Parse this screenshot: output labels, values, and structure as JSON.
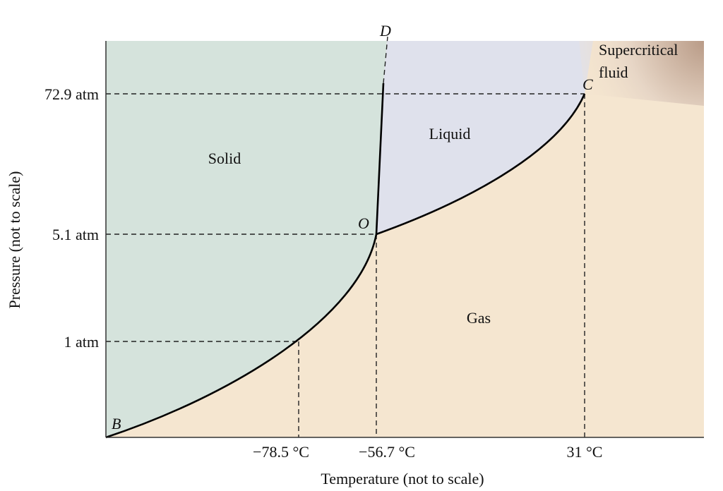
{
  "axes": {
    "x_title": "Temperature (not to scale)",
    "y_title": "Pressure (not to scale)",
    "x_ticks": [
      "−78.5 °C",
      "−56.7 °C",
      "31 °C"
    ],
    "y_ticks": [
      "72.9 atm",
      "5.1 atm",
      "1 atm"
    ]
  },
  "regions": {
    "solid": "Solid",
    "liquid": "Liquid",
    "gas": "Gas",
    "supercritical": [
      "Supercritical",
      "fluid"
    ]
  },
  "points": {
    "b": "B",
    "o": "O",
    "c": "C",
    "d": "D"
  }
}
